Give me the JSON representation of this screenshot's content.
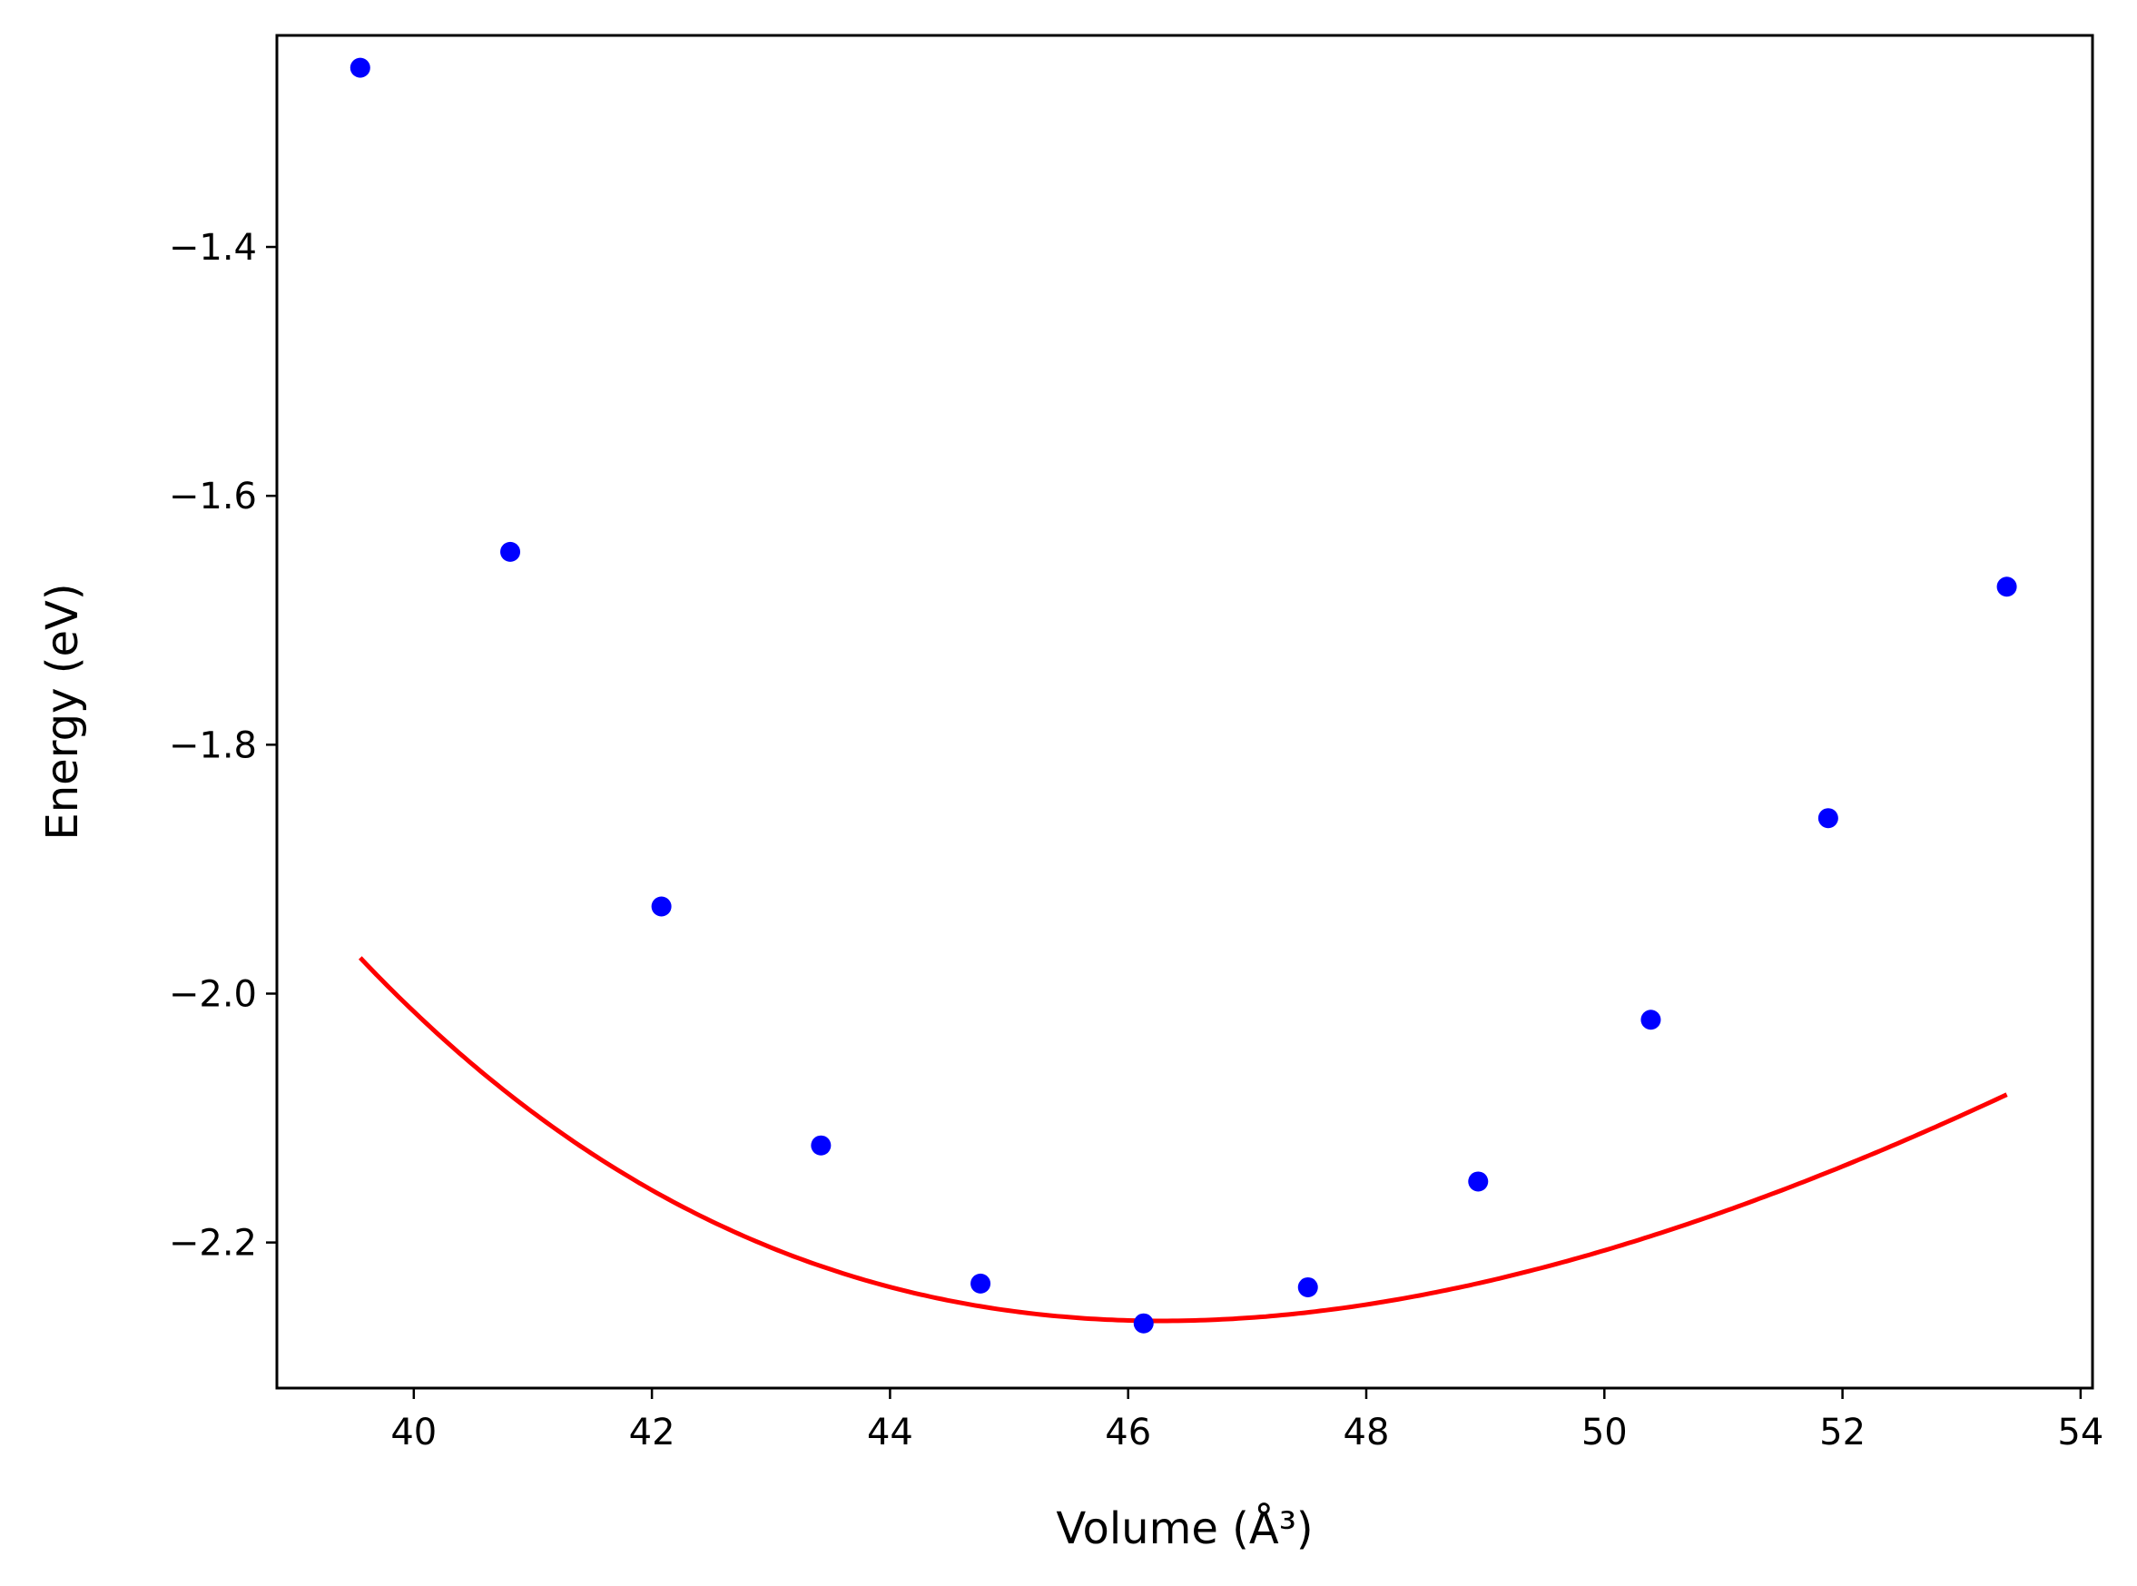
{
  "chart_data": {
    "type": "scatter",
    "title": "",
    "xlabel": "Volume (Å³)",
    "ylabel": "Energy (eV)",
    "xlim": [
      38.85,
      54.1
    ],
    "ylim": [
      -2.317,
      -1.23
    ],
    "xticks": [
      40,
      42,
      44,
      46,
      48,
      50,
      52,
      54
    ],
    "xtick_labels": [
      "40",
      "42",
      "44",
      "46",
      "48",
      "50",
      "52",
      "54"
    ],
    "yticks": [
      -1.4,
      -1.6,
      -1.8,
      -2.0,
      -2.2
    ],
    "ytick_labels": [
      "−1.4",
      "−1.6",
      "−1.8",
      "−2.0",
      "−2.2"
    ],
    "grid": false,
    "series": [
      {
        "kind": "points",
        "color": "#0000ff",
        "x": [
          39.55,
          40.81,
          42.08,
          43.42,
          44.76,
          46.13,
          47.51,
          48.94,
          50.39,
          51.88,
          53.38
        ],
        "y": [
          -1.256,
          -1.645,
          -1.93,
          -2.122,
          -2.233,
          -2.265,
          -2.236,
          -2.151,
          -2.021,
          -1.859,
          -1.673
        ]
      },
      {
        "kind": "fit-curve",
        "color": "#ff0000",
        "fit": {
          "V0": 46.28,
          "E0": -2.263,
          "B0": 0.44,
          "B0p": 4.8
        },
        "x_range": [
          39.55,
          53.38
        ]
      }
    ]
  }
}
